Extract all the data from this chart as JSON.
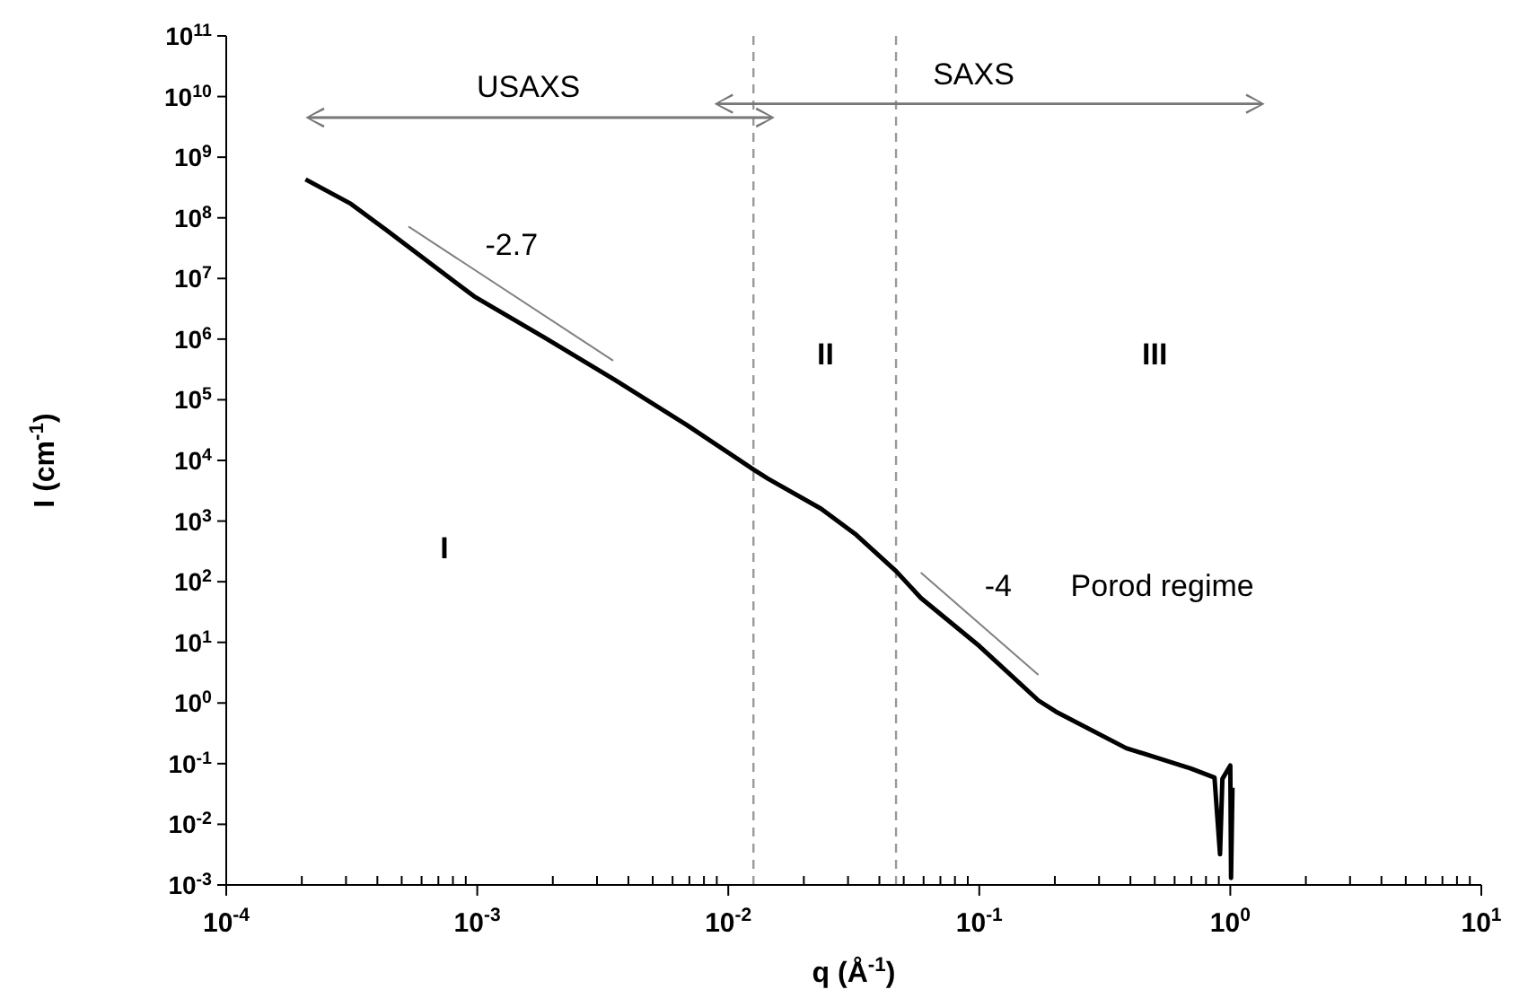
{
  "chart_data": {
    "type": "line",
    "xlabel": "q (Å$^{-1}$)",
    "ylabel": "I (cm$^{-1}$)",
    "log": "xy",
    "marker": "none",
    "xlim": [
      0.0001,
      10
    ],
    "ylim": [
      0.001,
      100000000000.0
    ],
    "xticks": [
      {
        "value": 0.0001,
        "label": "10$^{-4}$"
      },
      {
        "value": 0.0002,
        "label": null
      },
      {
        "value": 0.0003,
        "label": null
      },
      {
        "value": 0.0004,
        "label": null
      },
      {
        "value": 0.0005,
        "label": null
      },
      {
        "value": 0.0006,
        "label": null
      },
      {
        "value": 0.0007,
        "label": null
      },
      {
        "value": 0.0008,
        "label": null
      },
      {
        "value": 0.0009,
        "label": null
      },
      {
        "value": 0.001,
        "label": "10$^{-3}$"
      },
      {
        "value": 0.002,
        "label": null
      },
      {
        "value": 0.003,
        "label": null
      },
      {
        "value": 0.004,
        "label": null
      },
      {
        "value": 0.005,
        "label": null
      },
      {
        "value": 0.006,
        "label": null
      },
      {
        "value": 0.007,
        "label": null
      },
      {
        "value": 0.008,
        "label": null
      },
      {
        "value": 0.009,
        "label": null
      },
      {
        "value": 0.01,
        "label": "10$^{-2}$"
      },
      {
        "value": 0.02,
        "label": null
      },
      {
        "value": 0.03,
        "label": null
      },
      {
        "value": 0.04,
        "label": null
      },
      {
        "value": 0.05,
        "label": null
      },
      {
        "value": 0.06,
        "label": null
      },
      {
        "value": 0.07,
        "label": null
      },
      {
        "value": 0.08,
        "label": null
      },
      {
        "value": 0.09,
        "label": null
      },
      {
        "value": 0.1,
        "label": "10$^{-1}$"
      },
      {
        "value": 0.2,
        "label": null
      },
      {
        "value": 0.3,
        "label": null
      },
      {
        "value": 0.4,
        "label": null
      },
      {
        "value": 0.5,
        "label": null
      },
      {
        "value": 0.6,
        "label": null
      },
      {
        "value": 0.7,
        "label": null
      },
      {
        "value": 0.8,
        "label": null
      },
      {
        "value": 0.9,
        "label": null
      },
      {
        "value": 1,
        "label": "10$^{0}$"
      },
      {
        "value": 2,
        "label": null
      },
      {
        "value": 3,
        "label": null
      },
      {
        "value": 4,
        "label": null
      },
      {
        "value": 5,
        "label": null
      },
      {
        "value": 6,
        "label": null
      },
      {
        "value": 7,
        "label": null
      },
      {
        "value": 8,
        "label": null
      },
      {
        "value": 9,
        "label": null
      },
      {
        "value": 10,
        "label": "10$^{1}$"
      }
    ],
    "yticks": [
      {
        "value": 0.001,
        "label": "10$^{-3}$"
      },
      {
        "value": 0.01,
        "label": "10$^{-2}$"
      },
      {
        "value": 0.1,
        "label": "10$^{-1}$"
      },
      {
        "value": 1,
        "label": "10$^{0}$"
      },
      {
        "value": 10,
        "label": "10$^{1}$"
      },
      {
        "value": 100,
        "label": "10$^{2}$"
      },
      {
        "value": 1000,
        "label": "10$^{3}$"
      },
      {
        "value": 10000,
        "label": "10$^{4}$"
      },
      {
        "value": 100000,
        "label": "10$^{5}$"
      },
      {
        "value": 1000000,
        "label": "10$^{6}$"
      },
      {
        "value": 10000000,
        "label": "10$^{7}$"
      },
      {
        "value": 100000000,
        "label": "10$^{8}$"
      },
      {
        "value": 1000000000,
        "label": "10$^{9}$"
      },
      {
        "value": 10000000000,
        "label": "10$^{10}$"
      },
      {
        "value": 100000000000,
        "label": "10$^{11}$"
      }
    ],
    "series": [
      {
        "color": "#000000",
        "x": [
          0.000207,
          0.000314,
          0.000434,
          0.00097,
          0.00186,
          0.00355,
          0.0068,
          0.0126,
          0.0144,
          0.0234,
          0.0324,
          0.0467,
          0.0585,
          0.1,
          0.172,
          0.202,
          0.385,
          0.698,
          0.865,
          0.91,
          0.93,
          1.0,
          1.007,
          1.02
        ],
        "values": [
          430000000,
          170000000,
          63000000,
          5100000,
          1050000,
          210000,
          39000,
          7100,
          5000,
          1600,
          590,
          148,
          54,
          8.7,
          1.1,
          0.72,
          0.18,
          0.083,
          0.059,
          0.0032,
          0.056,
          0.093,
          0.0013,
          0.04
        ]
      },
      {
        "color": "#808080",
        "x": [
          0.000532,
          0.00348
        ],
        "values": [
          72000000,
          440000
        ]
      },
      {
        "color": "#808080",
        "x": [
          0.0585,
          0.172
        ],
        "values": [
          141,
          2.9
        ]
      }
    ],
    "ref_lines": [
      {
        "axis": "x",
        "value": 0.0126,
        "color": "#999999",
        "line_style": "dashed"
      },
      {
        "axis": "x",
        "value": 0.0466,
        "color": "#999999",
        "line_style": "dashed"
      }
    ],
    "annotations": [
      "USAXS",
      "SAXS",
      "-2.7",
      "I",
      "II",
      "III",
      "-4",
      "Porod regime"
    ]
  }
}
